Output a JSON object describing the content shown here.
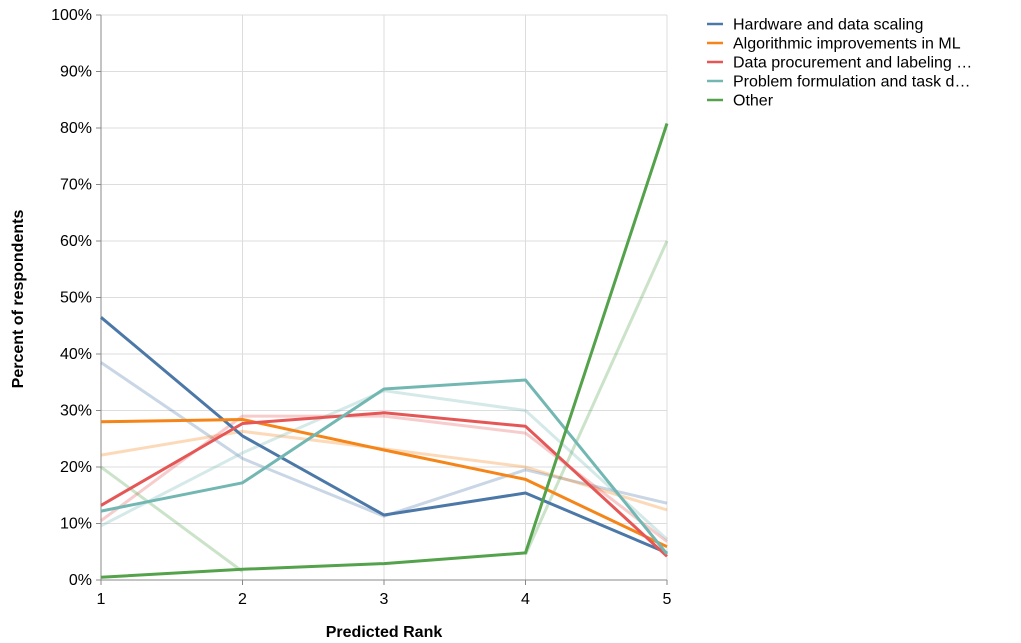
{
  "chart_data": {
    "type": "line",
    "title": "",
    "xlabel": "Predicted Rank",
    "ylabel": "Percent of respondents",
    "x": [
      1,
      2,
      3,
      4,
      5
    ],
    "x_tick_labels": [
      "1",
      "2",
      "3",
      "4",
      "5"
    ],
    "ylim": [
      0,
      100
    ],
    "y_tick_labels": [
      "0%",
      "10%",
      "20%",
      "30%",
      "40%",
      "50%",
      "60%",
      "70%",
      "80%",
      "90%",
      "100%"
    ],
    "grid": true,
    "legend_position": "top-right",
    "series": [
      {
        "name": "Hardware and data scaling",
        "color": "#4c78a8",
        "values": [
          46.5,
          25.5,
          11.5,
          15.4,
          4.8
        ]
      },
      {
        "name": "Algorithmic improvements in ML",
        "color": "#f58518",
        "values": [
          28.0,
          28.4,
          23.0,
          17.8,
          5.9
        ]
      },
      {
        "name": "Data procurement and labeling …",
        "color": "#e45756",
        "values": [
          13.2,
          27.7,
          29.6,
          27.2,
          4.2
        ]
      },
      {
        "name": "Problem formulation and task d…",
        "color": "#72b7b2",
        "values": [
          12.2,
          17.2,
          33.8,
          35.4,
          4.6
        ]
      },
      {
        "name": "Other",
        "color": "#54a24b",
        "values": [
          0.5,
          1.9,
          2.9,
          4.8,
          80.8
        ]
      }
    ],
    "faded_series": [
      {
        "color": "#4c78a8",
        "values": [
          38.5,
          21.5,
          11.3,
          19.5,
          13.6
        ]
      },
      {
        "color": "#f58518",
        "values": [
          22.1,
          26.3,
          23.2,
          20.0,
          12.4
        ]
      },
      {
        "color": "#e45756",
        "values": [
          10.5,
          29.0,
          29.0,
          26.0,
          6.8
        ]
      },
      {
        "color": "#72b7b2",
        "values": [
          9.6,
          22.5,
          33.5,
          30.0,
          7.2
        ]
      },
      {
        "color": "#54a24b",
        "values": [
          20.0,
          1.5,
          null,
          4.5,
          60.0
        ]
      }
    ]
  }
}
